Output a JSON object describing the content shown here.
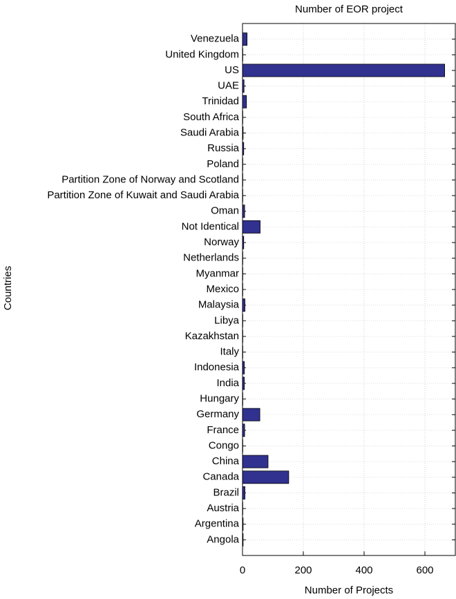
{
  "chart_data": {
    "type": "barh",
    "title": "Number of EOR project",
    "xlabel": "Number of Projects",
    "ylabel": "Countries",
    "categories": [
      "Angola",
      "Argentina",
      "Austria",
      "Brazil",
      "Canada",
      "China",
      "Congo",
      "France",
      "Germany",
      "Hungary",
      "India",
      "Indonesia",
      "Italy",
      "Kazakhstan",
      "Libya",
      "Malaysia",
      "Mexico",
      "Myanmar",
      "Netherlands",
      "Norway",
      "Not Identical",
      "Oman",
      "Partition Zone of Kuwait and Saudi Arabia",
      "Partition Zone of Norway and Scotland",
      "Poland",
      "Russia",
      "Saudi Arabia",
      "South Africa",
      "Trinidad",
      "UAE",
      "US",
      "United Kingdom",
      "Venezuela"
    ],
    "values": [
      2,
      2,
      1,
      8,
      152,
      84,
      1,
      7,
      57,
      1,
      6,
      6,
      1,
      1,
      1,
      8,
      1,
      1,
      1,
      4,
      58,
      7,
      1,
      1,
      1,
      4,
      2,
      1,
      13,
      5,
      665,
      1,
      15
    ],
    "color": "#31318f",
    "xlim": [
      0,
      700
    ],
    "xticks": [
      0,
      200,
      400,
      600
    ],
    "grid": true
  }
}
